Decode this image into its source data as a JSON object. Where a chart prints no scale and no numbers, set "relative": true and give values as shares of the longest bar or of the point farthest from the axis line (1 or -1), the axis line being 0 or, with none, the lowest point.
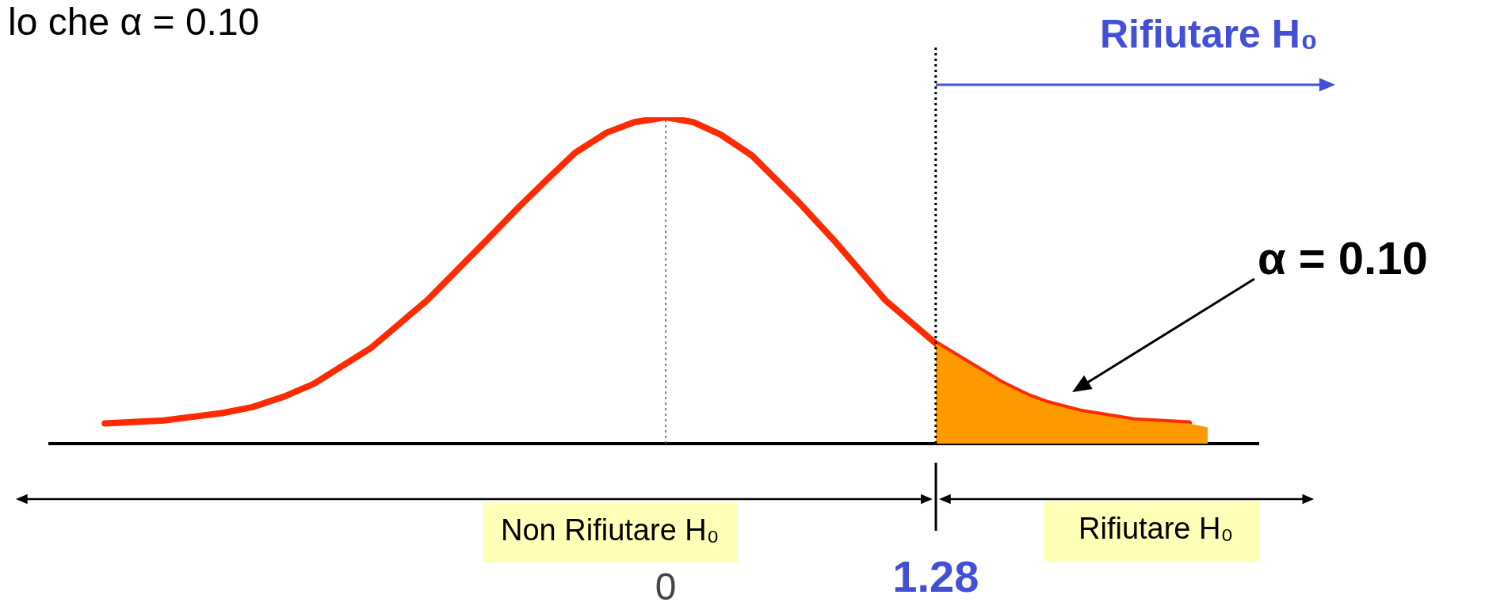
{
  "chart_data": {
    "type": "line",
    "title": "lo che α = 0.10",
    "relative": true,
    "legend": false,
    "grid": false,
    "marker": "none",
    "xlim": [
      -2.92,
      2.81
    ],
    "xticks": [
      0,
      1.28
    ],
    "series": [
      {
        "type": "area",
        "color": "#ff9900",
        "x": [
          1.28,
          1.4,
          1.59,
          1.72,
          1.81,
          1.97,
          2.22,
          2.48,
          2.57
        ],
        "values": [
          0.307,
          0.26,
          0.186,
          0.145,
          0.124,
          0.097,
          0.071,
          0.062,
          0.05
        ]
      },
      {
        "type": "line",
        "color": "#ff2a00",
        "x": [
          -2.66,
          -2.38,
          -2.1,
          -1.96,
          -1.81,
          -1.67,
          -1.4,
          -1.13,
          -0.85,
          -0.69,
          -0.56,
          -0.43,
          -0.28,
          -0.15,
          0,
          0.13,
          0.26,
          0.41,
          0.63,
          0.81,
          1.04,
          1.28,
          1.4,
          1.59,
          1.72,
          1.81,
          1.97,
          2.22,
          2.48
        ],
        "values": [
          0.062,
          0.071,
          0.094,
          0.112,
          0.144,
          0.183,
          0.292,
          0.44,
          0.623,
          0.729,
          0.811,
          0.891,
          0.953,
          0.985,
          1,
          0.985,
          0.947,
          0.882,
          0.74,
          0.614,
          0.44,
          0.307,
          0.26,
          0.186,
          0.145,
          0.124,
          0.097,
          0.071,
          0.062
        ]
      }
    ],
    "ref_lines": [
      {
        "axis": "x",
        "value": 0,
        "color": "#555555",
        "line_style": "dotted"
      },
      {
        "axis": "x",
        "value": 1.28,
        "color": "#000000",
        "line_style": "dotted"
      }
    ],
    "annotations": [
      "Rifiutare H₀",
      "α = 0.10",
      "Non Rifiutare H₀",
      "Rifiutare H₀"
    ]
  }
}
